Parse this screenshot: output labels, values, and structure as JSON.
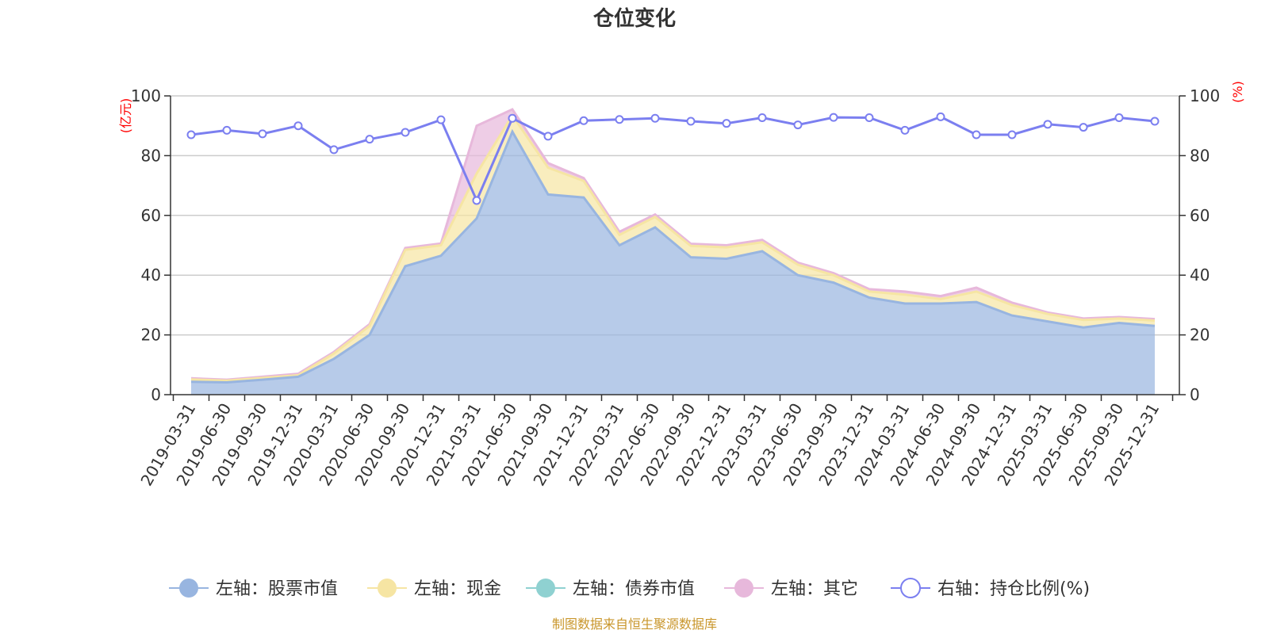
{
  "chart_data": {
    "type": "area",
    "title": "仓位变化",
    "left_unit": "(亿元)",
    "right_unit": "(%)",
    "left_ylim": [
      0,
      100
    ],
    "right_ylim": [
      0,
      100
    ],
    "y_ticks": [
      "0",
      "20",
      "40",
      "60",
      "80",
      "100"
    ],
    "categories": [
      "2019-03-31",
      "2019-06-30",
      "2019-09-30",
      "2019-12-31",
      "2020-03-31",
      "2020-06-30",
      "2020-09-30",
      "2020-12-31",
      "2021-03-31",
      "2021-06-30",
      "2021-09-30",
      "2021-12-31",
      "2022-03-31",
      "2022-06-30",
      "2022-09-30",
      "2022-12-31",
      "2023-03-31",
      "2023-06-30",
      "2023-09-30",
      "2023-12-31",
      "2024-03-31",
      "2024-06-30",
      "2024-09-30",
      "2024-12-31",
      "2025-03-31",
      "2025-06-30",
      "2025-09-30",
      "2025-12-31"
    ],
    "series": [
      {
        "name": "左轴：股票市值",
        "axis": "left",
        "kind": "area",
        "color": "#98b5e0",
        "values": [
          4.3,
          4.1,
          5.0,
          6.0,
          12.0,
          20.0,
          43.0,
          46.5,
          59.0,
          88.0,
          67.0,
          66.0,
          50.0,
          56.0,
          46.0,
          45.5,
          48.0,
          40.0,
          37.5,
          32.5,
          30.5,
          30.5,
          31.0,
          26.5,
          24.5,
          22.5,
          24.0,
          23.0
        ]
      },
      {
        "name": "左轴：现金",
        "axis": "left",
        "kind": "area",
        "color": "#f6e5a3",
        "values": [
          0.8,
          0.6,
          0.6,
          0.5,
          1.8,
          3.0,
          5.5,
          3.5,
          15.0,
          5.5,
          9.0,
          5.5,
          3.5,
          3.5,
          3.8,
          3.8,
          3.0,
          3.5,
          2.5,
          2.0,
          3.0,
          1.5,
          3.5,
          3.5,
          2.5,
          2.5,
          1.5,
          1.8
        ]
      },
      {
        "name": "左轴：债券市值",
        "axis": "left",
        "kind": "area",
        "color": "#8fd1d1",
        "values": [
          0,
          0,
          0,
          0,
          0,
          0,
          0,
          0,
          0,
          0,
          0,
          0,
          0,
          0,
          0,
          0,
          0,
          0,
          0,
          0,
          0,
          0,
          0,
          0,
          0,
          0,
          0,
          0
        ]
      },
      {
        "name": "左轴：其它",
        "axis": "left",
        "kind": "area",
        "color": "#e7b8db",
        "values": [
          0.4,
          0.3,
          0.4,
          0.5,
          0.5,
          0.6,
          0.6,
          0.6,
          16.0,
          2.0,
          1.5,
          1.0,
          1.0,
          0.8,
          0.7,
          0.7,
          0.8,
          0.7,
          0.7,
          0.8,
          1.0,
          1.0,
          1.3,
          0.8,
          0.5,
          0.5,
          0.5,
          0.5
        ]
      },
      {
        "name": "右轴：持仓比例(%)",
        "axis": "right",
        "kind": "line",
        "color": "#7b7ff0",
        "values": [
          87.0,
          88.5,
          87.3,
          90.0,
          82.0,
          85.5,
          87.8,
          92.0,
          65.0,
          92.5,
          86.5,
          91.7,
          92.1,
          92.5,
          91.5,
          90.8,
          92.7,
          90.3,
          92.8,
          92.7,
          88.5,
          93.0,
          87.0,
          87.0,
          90.5,
          89.5,
          92.7,
          91.5
        ]
      }
    ],
    "legend_position": "bottom",
    "source_note": "制图数据来自恒生聚源数据库"
  }
}
